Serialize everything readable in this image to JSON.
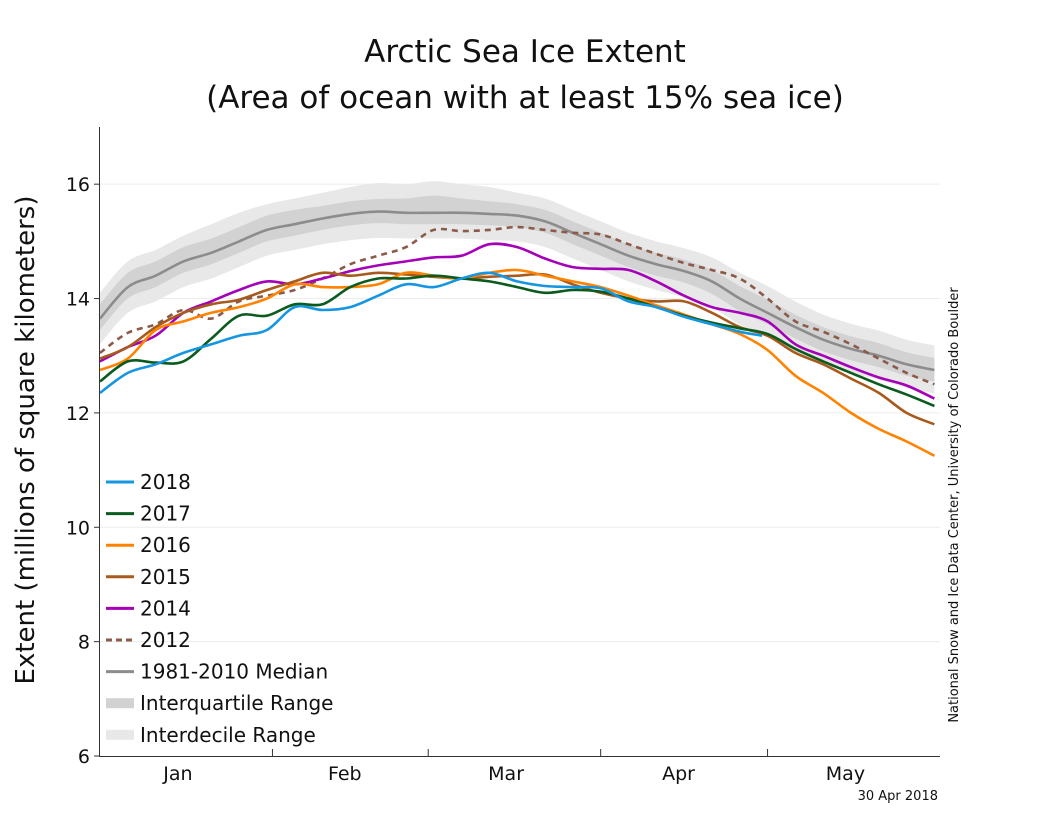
{
  "chart_data": {
    "type": "line",
    "title_line1": "Arctic Sea Ice Extent",
    "title_line2": "(Area of ocean with at least 15% sea ice)",
    "ylabel": "Extent (millions of square kilometers)",
    "xlabel": "",
    "ylim": [
      6,
      17
    ],
    "xlim": [
      0,
      151
    ],
    "yticks": [
      6,
      8,
      10,
      12,
      14,
      16
    ],
    "month_labels": [
      {
        "label": "Jan",
        "day": 14
      },
      {
        "label": "Feb",
        "day": 44
      },
      {
        "label": "Mar",
        "day": 73
      },
      {
        "label": "Apr",
        "day": 104
      },
      {
        "label": "May",
        "day": 134
      }
    ],
    "month_boundaries": [
      31,
      59,
      90,
      120
    ],
    "grid": true,
    "credit": "National Snow and Ice Data Center, University of Colorado Boulder",
    "date_stamp": "30 Apr 2018",
    "colors": {
      "2018": "#1696e0",
      "2017": "#0b5b1f",
      "2016": "#ff8200",
      "2015": "#a85a1c",
      "2014": "#a400b8",
      "2012": "#8b5a48",
      "median": "#8c8c8c",
      "iqr": "#d2d2d2",
      "idr": "#e8e8e8"
    },
    "legend": [
      {
        "key": "2018",
        "label": "2018",
        "style": "solid"
      },
      {
        "key": "2017",
        "label": "2017",
        "style": "solid"
      },
      {
        "key": "2016",
        "label": "2016",
        "style": "solid"
      },
      {
        "key": "2015",
        "label": "2015",
        "style": "solid"
      },
      {
        "key": "2014",
        "label": "2014",
        "style": "solid"
      },
      {
        "key": "2012",
        "label": "2012",
        "style": "dashed"
      },
      {
        "key": "median",
        "label": "1981-2010 Median",
        "style": "solid"
      },
      {
        "key": "iqr",
        "label": "Interquartile Range",
        "style": "band"
      },
      {
        "key": "idr",
        "label": "Interdecile Range",
        "style": "band"
      }
    ],
    "x": [
      0,
      5,
      10,
      15,
      20,
      25,
      30,
      35,
      40,
      45,
      50,
      55,
      60,
      65,
      70,
      75,
      80,
      85,
      90,
      95,
      100,
      105,
      110,
      115,
      120,
      125,
      130,
      135,
      140,
      145,
      150
    ],
    "median": [
      13.65,
      14.2,
      14.4,
      14.65,
      14.8,
      15.0,
      15.2,
      15.3,
      15.4,
      15.48,
      15.52,
      15.5,
      15.5,
      15.5,
      15.48,
      15.45,
      15.35,
      15.15,
      14.95,
      14.75,
      14.6,
      14.48,
      14.3,
      14.0,
      13.75,
      13.5,
      13.28,
      13.12,
      13.0,
      12.85,
      12.75
    ],
    "iqr_low": [
      13.45,
      14.0,
      14.2,
      14.45,
      14.6,
      14.8,
      15.0,
      15.1,
      15.2,
      15.28,
      15.32,
      15.3,
      15.3,
      15.3,
      15.28,
      15.25,
      15.15,
      14.95,
      14.75,
      14.55,
      14.4,
      14.28,
      14.08,
      13.78,
      13.55,
      13.3,
      13.08,
      12.92,
      12.8,
      12.65,
      12.55
    ],
    "iqr_high": [
      13.9,
      14.45,
      14.65,
      14.9,
      15.05,
      15.25,
      15.45,
      15.55,
      15.62,
      15.7,
      15.74,
      15.75,
      15.8,
      15.75,
      15.7,
      15.65,
      15.55,
      15.35,
      15.15,
      14.95,
      14.8,
      14.68,
      14.5,
      14.22,
      13.98,
      13.72,
      13.5,
      13.34,
      13.22,
      13.06,
      12.96
    ],
    "idr_low": [
      13.2,
      13.75,
      13.95,
      14.2,
      14.35,
      14.55,
      14.75,
      14.85,
      14.95,
      15.02,
      15.06,
      15.05,
      15.05,
      15.05,
      15.02,
      15.0,
      14.9,
      14.7,
      14.5,
      14.3,
      14.15,
      14.02,
      13.84,
      13.55,
      13.32,
      13.08,
      12.86,
      12.7,
      12.58,
      12.44,
      12.34
    ],
    "idr_high": [
      14.1,
      14.65,
      14.85,
      15.1,
      15.3,
      15.5,
      15.65,
      15.75,
      15.85,
      15.95,
      16.02,
      16.0,
      16.05,
      16.0,
      15.95,
      15.85,
      15.75,
      15.55,
      15.35,
      15.15,
      15.0,
      14.88,
      14.72,
      14.45,
      14.22,
      13.95,
      13.72,
      13.56,
      13.44,
      13.28,
      13.18
    ],
    "series": [
      {
        "name": "2018",
        "x": [
          0,
          5,
          10,
          15,
          20,
          25,
          30,
          35,
          40,
          45,
          50,
          55,
          60,
          65,
          70,
          75,
          80,
          85,
          90,
          95,
          100,
          105,
          110,
          115,
          119
        ],
        "values": [
          12.35,
          12.7,
          12.85,
          13.05,
          13.2,
          13.35,
          13.45,
          13.85,
          13.8,
          13.85,
          14.05,
          14.25,
          14.2,
          14.35,
          14.45,
          14.3,
          14.22,
          14.2,
          14.18,
          13.95,
          13.85,
          13.68,
          13.55,
          13.42,
          13.35
        ]
      },
      {
        "name": "2017",
        "x": [
          0,
          5,
          10,
          15,
          20,
          25,
          30,
          35,
          40,
          45,
          50,
          55,
          60,
          65,
          70,
          75,
          80,
          85,
          90,
          95,
          100,
          105,
          110,
          115,
          120,
          125,
          130,
          135,
          140,
          145,
          150
        ],
        "values": [
          12.55,
          12.9,
          12.88,
          12.9,
          13.3,
          13.7,
          13.7,
          13.9,
          13.9,
          14.2,
          14.35,
          14.35,
          14.4,
          14.35,
          14.3,
          14.2,
          14.1,
          14.15,
          14.12,
          14.0,
          13.85,
          13.7,
          13.58,
          13.48,
          13.38,
          13.12,
          12.9,
          12.7,
          12.5,
          12.32,
          12.12
        ]
      },
      {
        "name": "2016",
        "x": [
          0,
          5,
          10,
          15,
          20,
          25,
          30,
          35,
          40,
          45,
          50,
          55,
          60,
          65,
          70,
          75,
          80,
          85,
          90,
          95,
          100,
          105,
          110,
          115,
          120,
          125,
          130,
          135,
          140,
          145,
          150
        ],
        "values": [
          12.75,
          12.95,
          13.45,
          13.6,
          13.75,
          13.85,
          14.0,
          14.25,
          14.2,
          14.2,
          14.25,
          14.45,
          14.4,
          14.35,
          14.45,
          14.5,
          14.4,
          14.3,
          14.2,
          14.05,
          13.88,
          13.72,
          13.55,
          13.38,
          13.1,
          12.65,
          12.35,
          12.0,
          11.72,
          11.5,
          11.25
        ]
      },
      {
        "name": "2015",
        "x": [
          0,
          5,
          10,
          15,
          20,
          25,
          30,
          35,
          40,
          45,
          50,
          55,
          60,
          65,
          70,
          75,
          80,
          85,
          90,
          95,
          100,
          105,
          110,
          115,
          120,
          125,
          130,
          135,
          140,
          145,
          150
        ],
        "values": [
          12.95,
          13.15,
          13.5,
          13.75,
          13.9,
          13.98,
          14.15,
          14.3,
          14.45,
          14.4,
          14.45,
          14.42,
          14.38,
          14.35,
          14.38,
          14.4,
          14.42,
          14.25,
          14.1,
          14.0,
          13.95,
          13.95,
          13.75,
          13.5,
          13.35,
          13.05,
          12.85,
          12.6,
          12.35,
          12.0,
          11.8
        ]
      },
      {
        "name": "2014",
        "x": [
          0,
          5,
          10,
          15,
          20,
          25,
          30,
          35,
          40,
          45,
          50,
          55,
          60,
          65,
          70,
          75,
          80,
          85,
          90,
          95,
          100,
          105,
          110,
          115,
          120,
          125,
          130,
          135,
          140,
          145,
          150
        ],
        "values": [
          12.9,
          13.15,
          13.35,
          13.75,
          13.95,
          14.15,
          14.3,
          14.25,
          14.35,
          14.48,
          14.58,
          14.65,
          14.72,
          14.75,
          14.95,
          14.9,
          14.7,
          14.55,
          14.52,
          14.5,
          14.3,
          14.05,
          13.85,
          13.75,
          13.6,
          13.2,
          13.0,
          12.8,
          12.62,
          12.48,
          12.25
        ]
      },
      {
        "name": "2012",
        "x": [
          0,
          5,
          10,
          15,
          20,
          25,
          30,
          35,
          40,
          45,
          50,
          55,
          60,
          65,
          70,
          75,
          80,
          85,
          90,
          95,
          100,
          105,
          110,
          115,
          120,
          125,
          130,
          135,
          140,
          145,
          150
        ],
        "values": [
          13.05,
          13.4,
          13.55,
          13.8,
          13.65,
          13.95,
          14.05,
          14.15,
          14.35,
          14.6,
          14.75,
          14.9,
          15.2,
          15.18,
          15.2,
          15.25,
          15.2,
          15.15,
          15.12,
          14.95,
          14.78,
          14.62,
          14.5,
          14.35,
          14.0,
          13.6,
          13.42,
          13.2,
          12.95,
          12.7,
          12.5
        ]
      }
    ]
  }
}
